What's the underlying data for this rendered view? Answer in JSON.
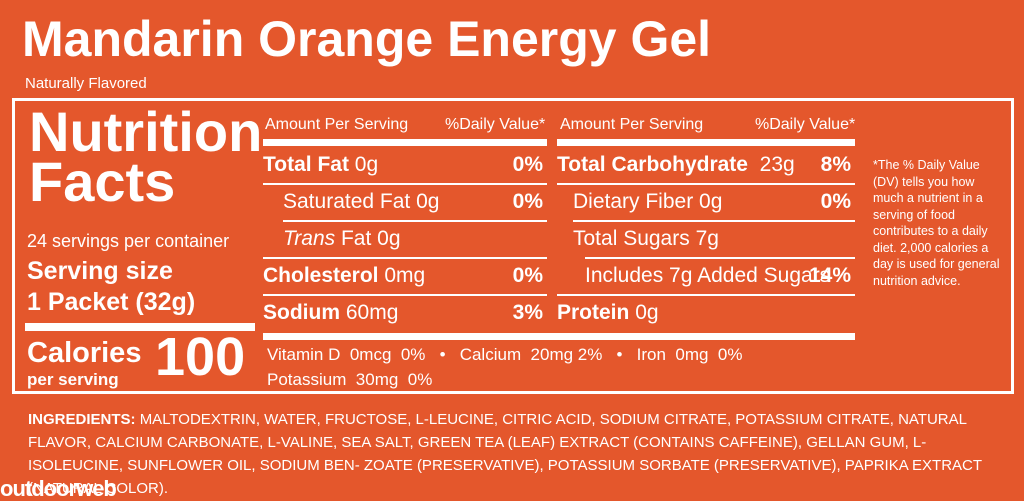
{
  "title": "Mandarin Orange Energy Gel",
  "subtitle": "Naturally Flavored",
  "label": {
    "heading_line1": "Nutrition",
    "heading_line2": "Facts",
    "servings_per_container": "24 servings per container",
    "serving_size_label": "Serving size",
    "serving_size_value": "1 Packet (32g)",
    "calories_label": "Calories",
    "calories_sublabel": "per serving",
    "calories_value": "100"
  },
  "left_table": {
    "header_amount": "Amount Per Serving",
    "header_dv": "%Daily Value*",
    "rows": [
      {
        "name": "Total Fat",
        "amount": "0g",
        "dv": "0%"
      },
      {
        "name": "Saturated Fat",
        "amount": "0g",
        "dv": "0%"
      },
      {
        "name": "Trans",
        "name_suffix": "Fat",
        "amount": "0g",
        "dv": ""
      },
      {
        "name": "Cholesterol",
        "amount": "0mg",
        "dv": "0%"
      },
      {
        "name": "Sodium",
        "amount": "60mg",
        "dv": "3%"
      }
    ]
  },
  "right_table": {
    "header_amount": "Amount Per Serving",
    "header_dv": "%Daily Value*",
    "rows": [
      {
        "name": "Total Carbohydrate",
        "amount": "23g",
        "dv": "8%"
      },
      {
        "name": "Dietary Fiber",
        "amount": "0g",
        "dv": "0%"
      },
      {
        "name": "Total Sugars",
        "amount": "7g",
        "dv": ""
      },
      {
        "name": "Includes 7g Added Sugars",
        "amount": "",
        "dv": "14%"
      },
      {
        "name": "Protein",
        "amount": "0g",
        "dv": ""
      }
    ]
  },
  "vitamins": {
    "line1": "Vitamin D  0mcg  0%   •   Calcium  20mg 2%   •   Iron  0mg  0%",
    "line2": "Potassium  30mg  0%"
  },
  "footnote": "*The % Daily Value (DV) tells you how much a nutrient in a serving of food contributes to a daily diet. 2,000 calories a day is used for general nutrition advice.",
  "ingredients": {
    "label": "INGREDIENTS:",
    "text": "MALTODEXTRIN, WATER, FRUCTOSE, L-LEUCINE, CITRIC ACID, SODIUM CITRATE, POTASSIUM CITRATE, NATURAL FLAVOR, CALCIUM CARBONATE, L-VALINE, SEA SALT, GREEN TEA (LEAF) EXTRACT (CONTAINS CAFFEINE), GELLAN GUM, L-ISOLEUCINE, SUNFLOWER OIL, SODIUM BEN- ZOATE (PRESERVATIVE), POTASSIUM SORBATE (PRESERVATIVE), PAPRIKA EXTRACT (NATURAL COLOR)."
  },
  "watermark": "outdoorweb",
  "colors": {
    "background": "#e4572c",
    "text": "#ffffff"
  }
}
